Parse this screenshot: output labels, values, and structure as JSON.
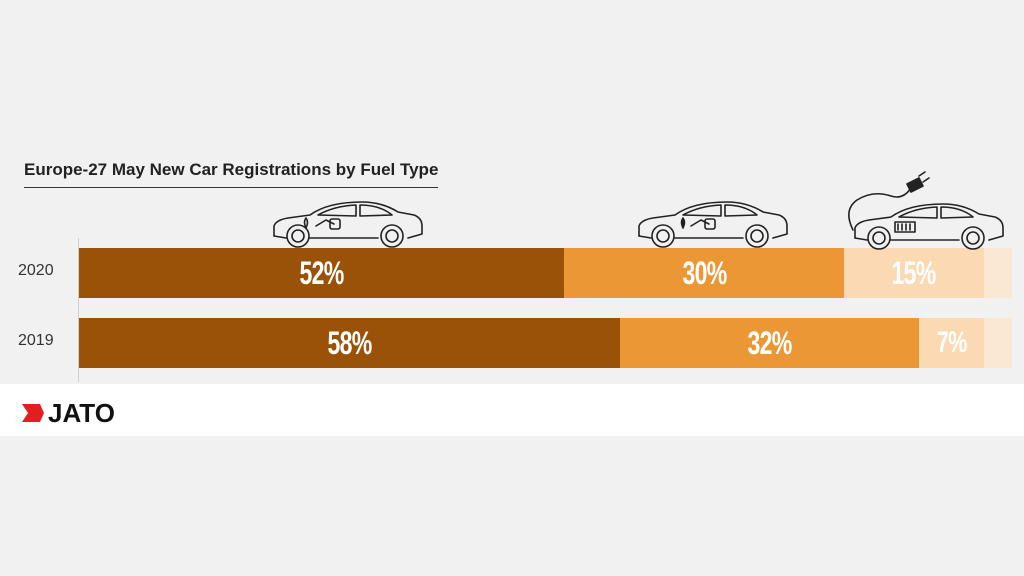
{
  "chart_data": {
    "type": "bar",
    "orientation": "horizontal-stacked",
    "title": "Europe-27 May New Car Registrations by Fuel Type",
    "categories": [
      "2020",
      "2019"
    ],
    "series": [
      {
        "values": [
          52,
          58
        ],
        "labels": [
          "52%",
          "58%"
        ],
        "color": "#9a5208",
        "icon": "car-fuel-drop-icon"
      },
      {
        "values": [
          30,
          32
        ],
        "labels": [
          "30%",
          "32%"
        ],
        "color": "#ec9735",
        "icon": "car-fuel-pump-icon"
      },
      {
        "values": [
          15,
          7
        ],
        "labels": [
          "15%",
          "7%"
        ],
        "color": "#fbd9b2",
        "icon": "car-electric-plug-icon"
      },
      {
        "values": [
          3,
          3
        ],
        "color": "#fbe8d3"
      }
    ]
  },
  "brand": {
    "logo_text": "JATO",
    "logo_color": "#e02020"
  }
}
